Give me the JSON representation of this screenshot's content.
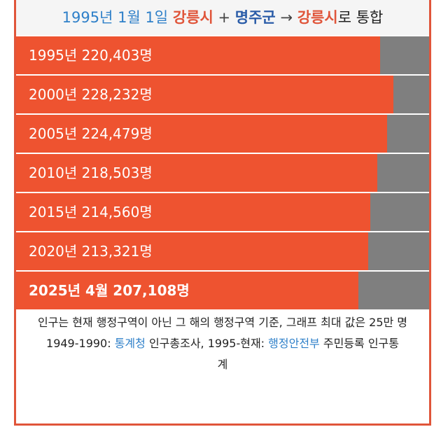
{
  "header": {
    "date": "1995년 1월 1일",
    "city1": "강릉시",
    "plus": "+",
    "county": "명주군",
    "arrow": "→",
    "city2": "강릉시",
    "suffix": "로 통합"
  },
  "chart_data": {
    "type": "bar",
    "orientation": "horizontal",
    "max_value": 250000,
    "categories": [
      "1995년",
      "2000년",
      "2005년",
      "2010년",
      "2015년",
      "2020년",
      "2025년 4월"
    ],
    "values": [
      220403,
      228232,
      224479,
      218503,
      214560,
      213321,
      207108
    ],
    "labels": [
      "1995년 220,403명",
      "2000년 228,232명",
      "2005년 224,479명",
      "2010년 218,503명",
      "2015년 214,560명",
      "2020년 213,321명",
      "2025년 4월 207,108명"
    ],
    "colors": {
      "bar": "#ee5330",
      "track": "#7f7f7f"
    }
  },
  "notes": {
    "line1": "인구는 현재 행정구역이 아닌 그 해의 행정구역 기준, 그래프 최대 값은 25만 명",
    "line2_prefix": "1949-1990: ",
    "line2_src1": "통계청",
    "line2_mid": " 인구총조사, 1995-현재: ",
    "line2_src2": "행정안전부",
    "line2_suffix": " 주민등록 인구통계"
  }
}
